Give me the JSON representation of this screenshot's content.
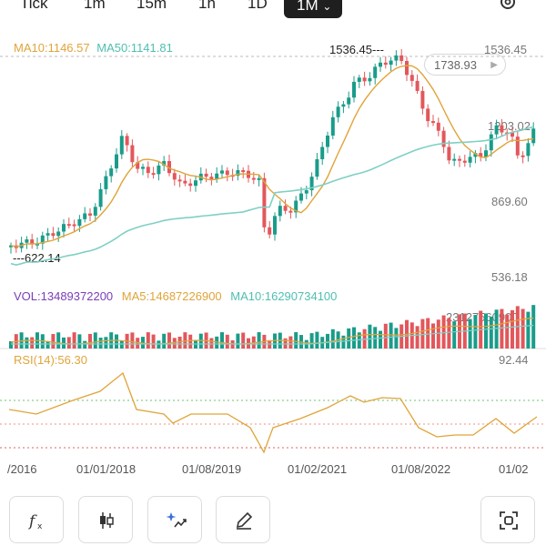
{
  "tabs": [
    {
      "label": "Tick"
    },
    {
      "label": "1m"
    },
    {
      "label": "15m"
    },
    {
      "label": "1h"
    },
    {
      "label": "1D"
    },
    {
      "label": "1M",
      "active": true
    }
  ],
  "main_chart": {
    "ma10_label": "MA10:1146.57",
    "ma50_label": "MA50:1141.81",
    "high_marker": "1536.45",
    "low_marker": "622.14",
    "current_price": "1738.93",
    "y_ticks": [
      "1536.45",
      "1203.02",
      "869.60",
      "536.18"
    ],
    "colors": {
      "up": "#1a9c8a",
      "down": "#e2575b",
      "ma10": "#e0a43a",
      "ma50": "#7fd0c4"
    }
  },
  "volume_panel": {
    "vol_label": "VOL:13489372200",
    "ma5_label": "MA5:14687226900",
    "ma10_label": "MA10:16290734100",
    "max_label": "23127560900",
    "colors": {
      "vol": "#7a3db8",
      "ma5": "#e0a43a",
      "ma10": "#7fd0c4"
    }
  },
  "rsi_panel": {
    "label": "RSI(14):56.30",
    "top_value": "92.44",
    "color": "#e0a43a"
  },
  "x_axis": [
    "/2016",
    "01/01/2018",
    "01/08/2019",
    "01/02/2021",
    "01/08/2022",
    "01/02"
  ],
  "toolbar": {
    "buttons": [
      {
        "icon": "function-icon"
      },
      {
        "icon": "candlestick-icon"
      },
      {
        "icon": "magic-chart-icon"
      },
      {
        "icon": "pencil-icon"
      },
      {
        "icon": "fullscreen-capture-icon"
      }
    ]
  }
}
